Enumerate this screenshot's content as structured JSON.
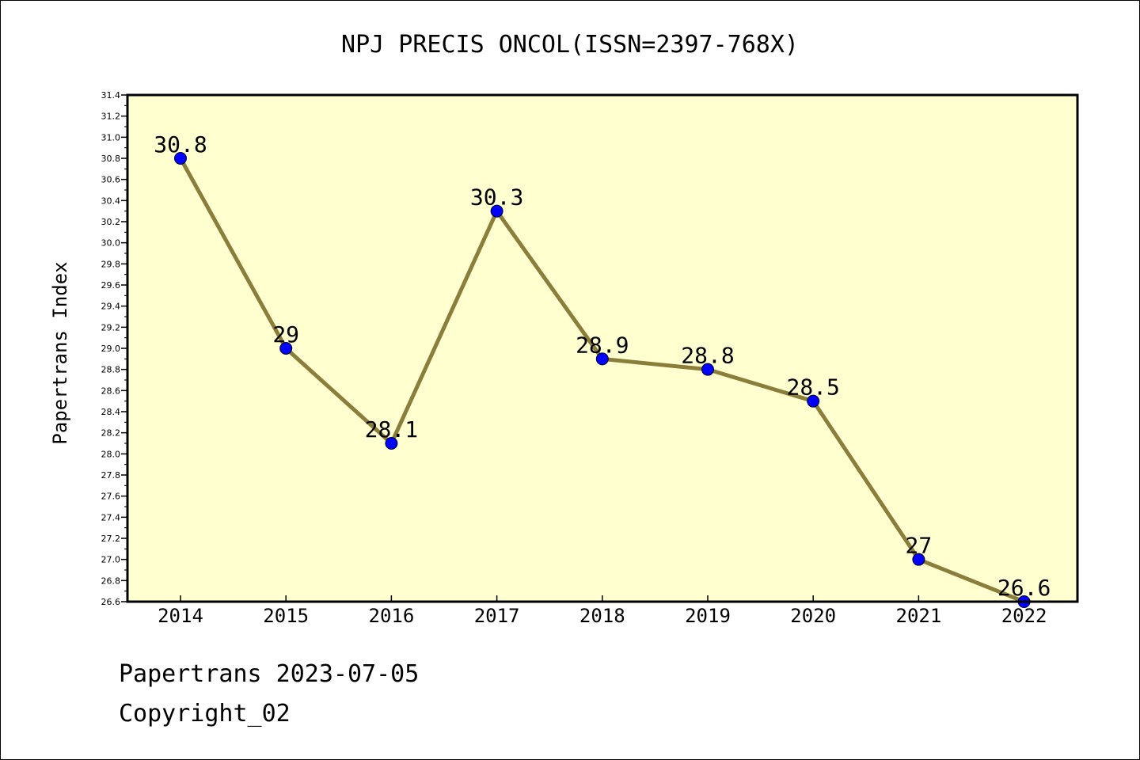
{
  "chart_data": {
    "type": "line",
    "title": "NPJ PRECIS ONCOL(ISSN=2397-768X)",
    "xlabel": "",
    "ylabel": "Papertrans Index",
    "categories": [
      "2014",
      "2015",
      "2016",
      "2017",
      "2018",
      "2019",
      "2020",
      "2021",
      "2022"
    ],
    "series": [
      {
        "values": [
          30.8,
          29,
          28.1,
          30.3,
          28.9,
          28.8,
          28.5,
          27,
          26.6
        ],
        "labels": [
          "30.8",
          "29",
          "28.1",
          "30.3",
          "28.9",
          "28.8",
          "28.5",
          "27",
          "26.6"
        ]
      }
    ],
    "ylim": [
      26.6,
      31.4
    ],
    "yticks": [
      "26.6",
      "26.8",
      "27.0",
      "27.2",
      "27.4",
      "27.6",
      "27.8",
      "28.0",
      "28.2",
      "28.4",
      "28.6",
      "28.8",
      "29.0",
      "29.2",
      "29.4",
      "29.6",
      "29.8",
      "30.0",
      "30.2",
      "30.4",
      "30.6",
      "30.8",
      "31.0",
      "31.2",
      "31.4"
    ],
    "grid": false,
    "colors": {
      "plot_background": "#ffffd0",
      "line": "#8b7d3a",
      "marker": "#0000ff"
    }
  },
  "footer": {
    "line1": "Papertrans 2023-07-05",
    "line2": "Copyright_02"
  }
}
